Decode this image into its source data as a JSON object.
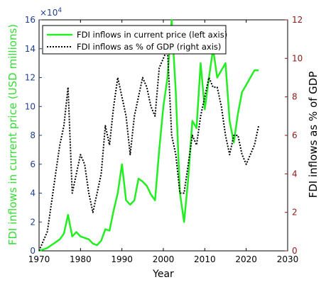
{
  "chart_data": {
    "type": "line",
    "xlabel": "Year",
    "ylabel_left": "FDI inflows in current price (USD millions)",
    "ylabel_right": "FDI inflows as % of GDP",
    "left_axis_multiplier": "×10",
    "left_axis_exponent": "4",
    "xlim": [
      1970,
      2030
    ],
    "ylim_left": [
      0,
      16
    ],
    "ylim_right": [
      0,
      12
    ],
    "x_ticks": [
      1970,
      1980,
      1990,
      2000,
      2010,
      2020,
      2030
    ],
    "y_left_ticks": [
      0,
      2,
      4,
      6,
      8,
      10,
      12,
      14,
      16
    ],
    "y_right_ticks": [
      0,
      2,
      4,
      6,
      8,
      10,
      12
    ],
    "legend_position": "top-left",
    "colors": {
      "left_axis": "#1f3e8c",
      "right_axis": "#8b1a1a",
      "left_label": "#33dd33",
      "series1": "#22ee22",
      "series2": "#000000"
    },
    "series": [
      {
        "name": "FDI inflows in current price (left axis)",
        "axis": "left",
        "style": "solid",
        "x": [
          1970,
          1971,
          1972,
          1973,
          1974,
          1975,
          1976,
          1977,
          1978,
          1979,
          1980,
          1981,
          1982,
          1983,
          1984,
          1985,
          1986,
          1987,
          1988,
          1989,
          1990,
          1991,
          1992,
          1993,
          1994,
          1995,
          1996,
          1997,
          1998,
          1999,
          2000,
          2001,
          2002,
          2003,
          2004,
          2005,
          2006,
          2007,
          2008,
          2009,
          2010,
          2011,
          2012,
          2013,
          2014,
          2015,
          2016,
          2017,
          2018,
          2019,
          2020,
          2021,
          2022,
          2023
        ],
        "values": [
          0,
          0.1,
          0.2,
          0.4,
          0.6,
          0.8,
          1.2,
          2.5,
          1.0,
          1.3,
          1.0,
          0.9,
          0.8,
          0.5,
          0.4,
          0.7,
          1.5,
          1.4,
          2.8,
          4.0,
          6.0,
          3.5,
          3.2,
          3.5,
          5.0,
          4.8,
          4.5,
          3.9,
          3.5,
          7.0,
          10.0,
          12.0,
          16.0,
          11.0,
          4.0,
          2.0,
          5.0,
          9.0,
          8.5,
          13.0,
          9.8,
          12.0,
          14.0,
          12.0,
          12.5,
          13.0,
          9.0,
          7.5,
          9.5,
          11.0,
          11.5,
          12.0,
          12.5,
          12.5
        ]
      },
      {
        "name": "FDI inflows as % of GDP (right axis)",
        "axis": "right",
        "style": "dotted",
        "x": [
          1970,
          1971,
          1972,
          1973,
          1974,
          1975,
          1976,
          1977,
          1978,
          1979,
          1980,
          1981,
          1982,
          1983,
          1984,
          1985,
          1986,
          1987,
          1988,
          1989,
          1990,
          1991,
          1992,
          1993,
          1994,
          1995,
          1996,
          1997,
          1998,
          1999,
          2000,
          2001,
          2002,
          2003,
          2004,
          2005,
          2006,
          2007,
          2008,
          2009,
          2010,
          2011,
          2012,
          2013,
          2014,
          2015,
          2016,
          2017,
          2018,
          2019,
          2020,
          2021,
          2022,
          2023
        ],
        "values": [
          0,
          0.5,
          1.0,
          2.5,
          4.0,
          5.5,
          6.5,
          8.5,
          3.0,
          4.0,
          5.0,
          4.5,
          3.0,
          2.0,
          3.0,
          4.0,
          6.5,
          5.5,
          7.5,
          9.0,
          8.0,
          7.0,
          5.0,
          7.0,
          8.0,
          9.0,
          8.5,
          7.5,
          7.0,
          9.5,
          10.0,
          10.5,
          6.0,
          5.0,
          3.0,
          3.0,
          4.5,
          6.0,
          5.5,
          7.0,
          8.0,
          9.0,
          8.5,
          8.5,
          7.5,
          6.0,
          5.0,
          6.0,
          6.0,
          5.0,
          4.5,
          5.0,
          5.5,
          6.5
        ]
      }
    ]
  }
}
